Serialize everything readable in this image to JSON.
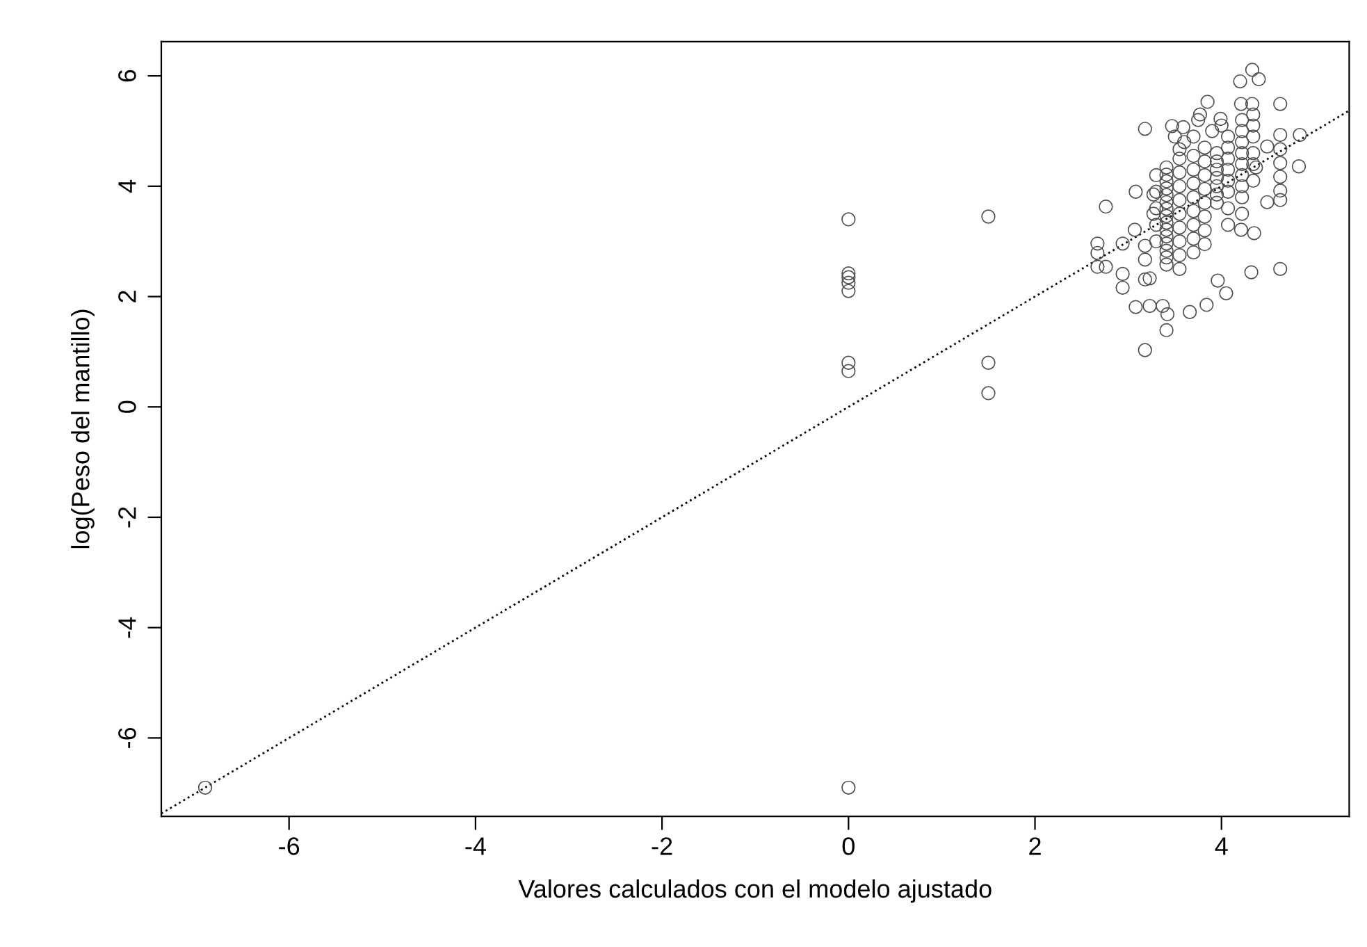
{
  "chart_data": {
    "type": "scatter",
    "xlabel": "Valores calculados con el modelo ajustado",
    "ylabel": "log(Peso del mantillo)",
    "xlim": [
      -7.37,
      5.37
    ],
    "ylim": [
      -7.42,
      6.62
    ],
    "xticks": [
      -6,
      -4,
      -2,
      0,
      2,
      4
    ],
    "yticks": [
      -6,
      -4,
      -2,
      0,
      2,
      4,
      6
    ],
    "grid": false,
    "legend": false,
    "marker": "circle",
    "series": [
      {
        "color": "#505050",
        "x": [
          -6.9,
          0,
          0,
          0,
          0,
          0,
          0,
          0,
          0,
          1.5,
          1.5,
          1.5,
          4.33,
          4.4,
          4.2,
          3.85,
          4.63,
          4.21,
          4.33,
          3.18,
          3.47,
          3.59,
          3.77,
          3.99,
          4.84,
          4.63,
          4.63,
          4.63,
          4.63,
          4.63,
          4.63,
          4.83,
          4.49,
          4.37,
          4.49,
          3.08,
          2.76,
          2.67,
          2.67,
          2.67,
          2.76,
          2.94,
          3.07,
          2.94,
          2.94,
          3.18,
          3.18,
          3.18,
          3.23,
          3.08,
          3.23,
          3.37,
          3.42,
          3.41,
          3.18,
          3.66,
          3.84,
          3.96,
          4.05,
          4.32,
          4.63,
          4.35,
          4.21,
          3.41,
          3.41,
          3.41,
          3.41,
          3.41,
          3.41,
          3.41,
          3.41,
          3.41,
          3.41,
          3.41,
          3.41,
          3.41,
          3.41,
          3.41,
          3.55,
          3.55,
          3.55,
          3.55,
          3.55,
          3.55,
          3.55,
          3.55,
          3.55,
          3.55,
          3.7,
          3.7,
          3.7,
          3.7,
          3.7,
          3.7,
          3.7,
          3.7,
          3.82,
          3.82,
          3.82,
          3.82,
          3.82,
          3.82,
          3.82,
          3.82,
          3.95,
          3.95,
          3.95,
          3.95,
          3.95,
          3.95,
          3.95,
          4.07,
          4.07,
          4.07,
          4.07,
          4.07,
          4.07,
          4.07,
          4.07,
          4.22,
          4.22,
          4.22,
          4.22,
          4.22,
          4.22,
          4.22,
          4.22,
          4.22,
          4.34,
          4.34,
          4.34,
          4.34,
          4.34,
          4.34,
          3.3,
          3.3,
          3.3,
          3.3,
          3.3,
          3.27,
          3.27,
          3.5,
          3.6,
          3.7,
          3.9,
          4.0,
          3.75
        ],
        "values": [
          -6.9,
          -6.9,
          3.4,
          2.42,
          2.35,
          2.25,
          2.1,
          0.8,
          0.65,
          3.45,
          0.8,
          0.25,
          6.11,
          5.94,
          5.9,
          5.53,
          5.49,
          5.49,
          5.49,
          5.04,
          5.09,
          5.07,
          5.3,
          5.22,
          4.93,
          4.93,
          4.67,
          4.42,
          4.17,
          3.92,
          3.75,
          4.36,
          4.72,
          4.34,
          3.71,
          3.9,
          3.63,
          2.96,
          2.79,
          2.54,
          2.54,
          2.96,
          3.21,
          2.41,
          2.16,
          2.92,
          2.67,
          2.31,
          2.33,
          1.81,
          1.83,
          1.83,
          1.68,
          1.39,
          1.03,
          1.72,
          1.85,
          2.29,
          2.06,
          2.44,
          2.5,
          3.15,
          3.21,
          4.34,
          4.21,
          4.09,
          3.96,
          3.84,
          3.71,
          3.59,
          3.46,
          3.34,
          3.21,
          3.09,
          2.96,
          2.83,
          2.71,
          2.58,
          4.67,
          4.5,
          4.25,
          4.0,
          3.75,
          3.5,
          3.25,
          3.0,
          2.75,
          2.5,
          4.55,
          4.3,
          4.05,
          3.8,
          3.55,
          3.3,
          3.05,
          2.8,
          4.7,
          4.45,
          4.2,
          3.95,
          3.7,
          3.45,
          3.2,
          2.95,
          4.6,
          4.45,
          4.3,
          4.15,
          4.0,
          3.85,
          3.7,
          4.9,
          4.7,
          4.5,
          4.3,
          4.1,
          3.9,
          3.6,
          3.3,
          5.2,
          5.0,
          4.8,
          4.6,
          4.4,
          4.2,
          4.0,
          3.8,
          3.5,
          5.3,
          5.1,
          4.9,
          4.6,
          4.4,
          4.1,
          4.2,
          3.9,
          3.6,
          3.3,
          3.0,
          3.85,
          3.5,
          4.9,
          4.8,
          4.9,
          5.0,
          5.1,
          5.2
        ]
      },
      {
        "type": "line",
        "color": "#000000",
        "marker": "none",
        "line_style": "dotted",
        "x": [
          -7.37,
          5.37
        ],
        "values": [
          -7.37,
          5.37
        ]
      }
    ]
  }
}
